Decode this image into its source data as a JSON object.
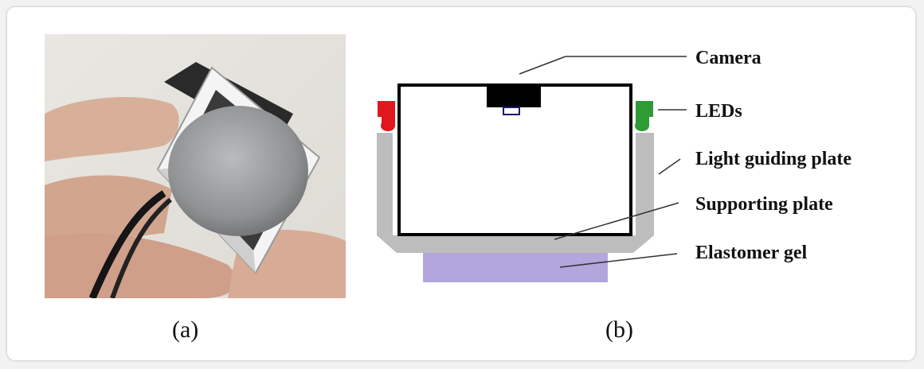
{
  "panels": {
    "a": {
      "caption": "(a)"
    },
    "b": {
      "caption": "(b)"
    }
  },
  "labels": {
    "camera": "Camera",
    "leds": "LEDs",
    "light_guiding_plate": "Light guiding plate",
    "supporting_plate": "Supporting plate",
    "elastomer_gel": "Elastomer gel"
  },
  "colors": {
    "led_left": "#e0171d",
    "led_right": "#2e9b35",
    "light_guiding_plate": "#bdbdbd",
    "elastomer_gel": "#b3a6dc",
    "camera": "#000000"
  }
}
